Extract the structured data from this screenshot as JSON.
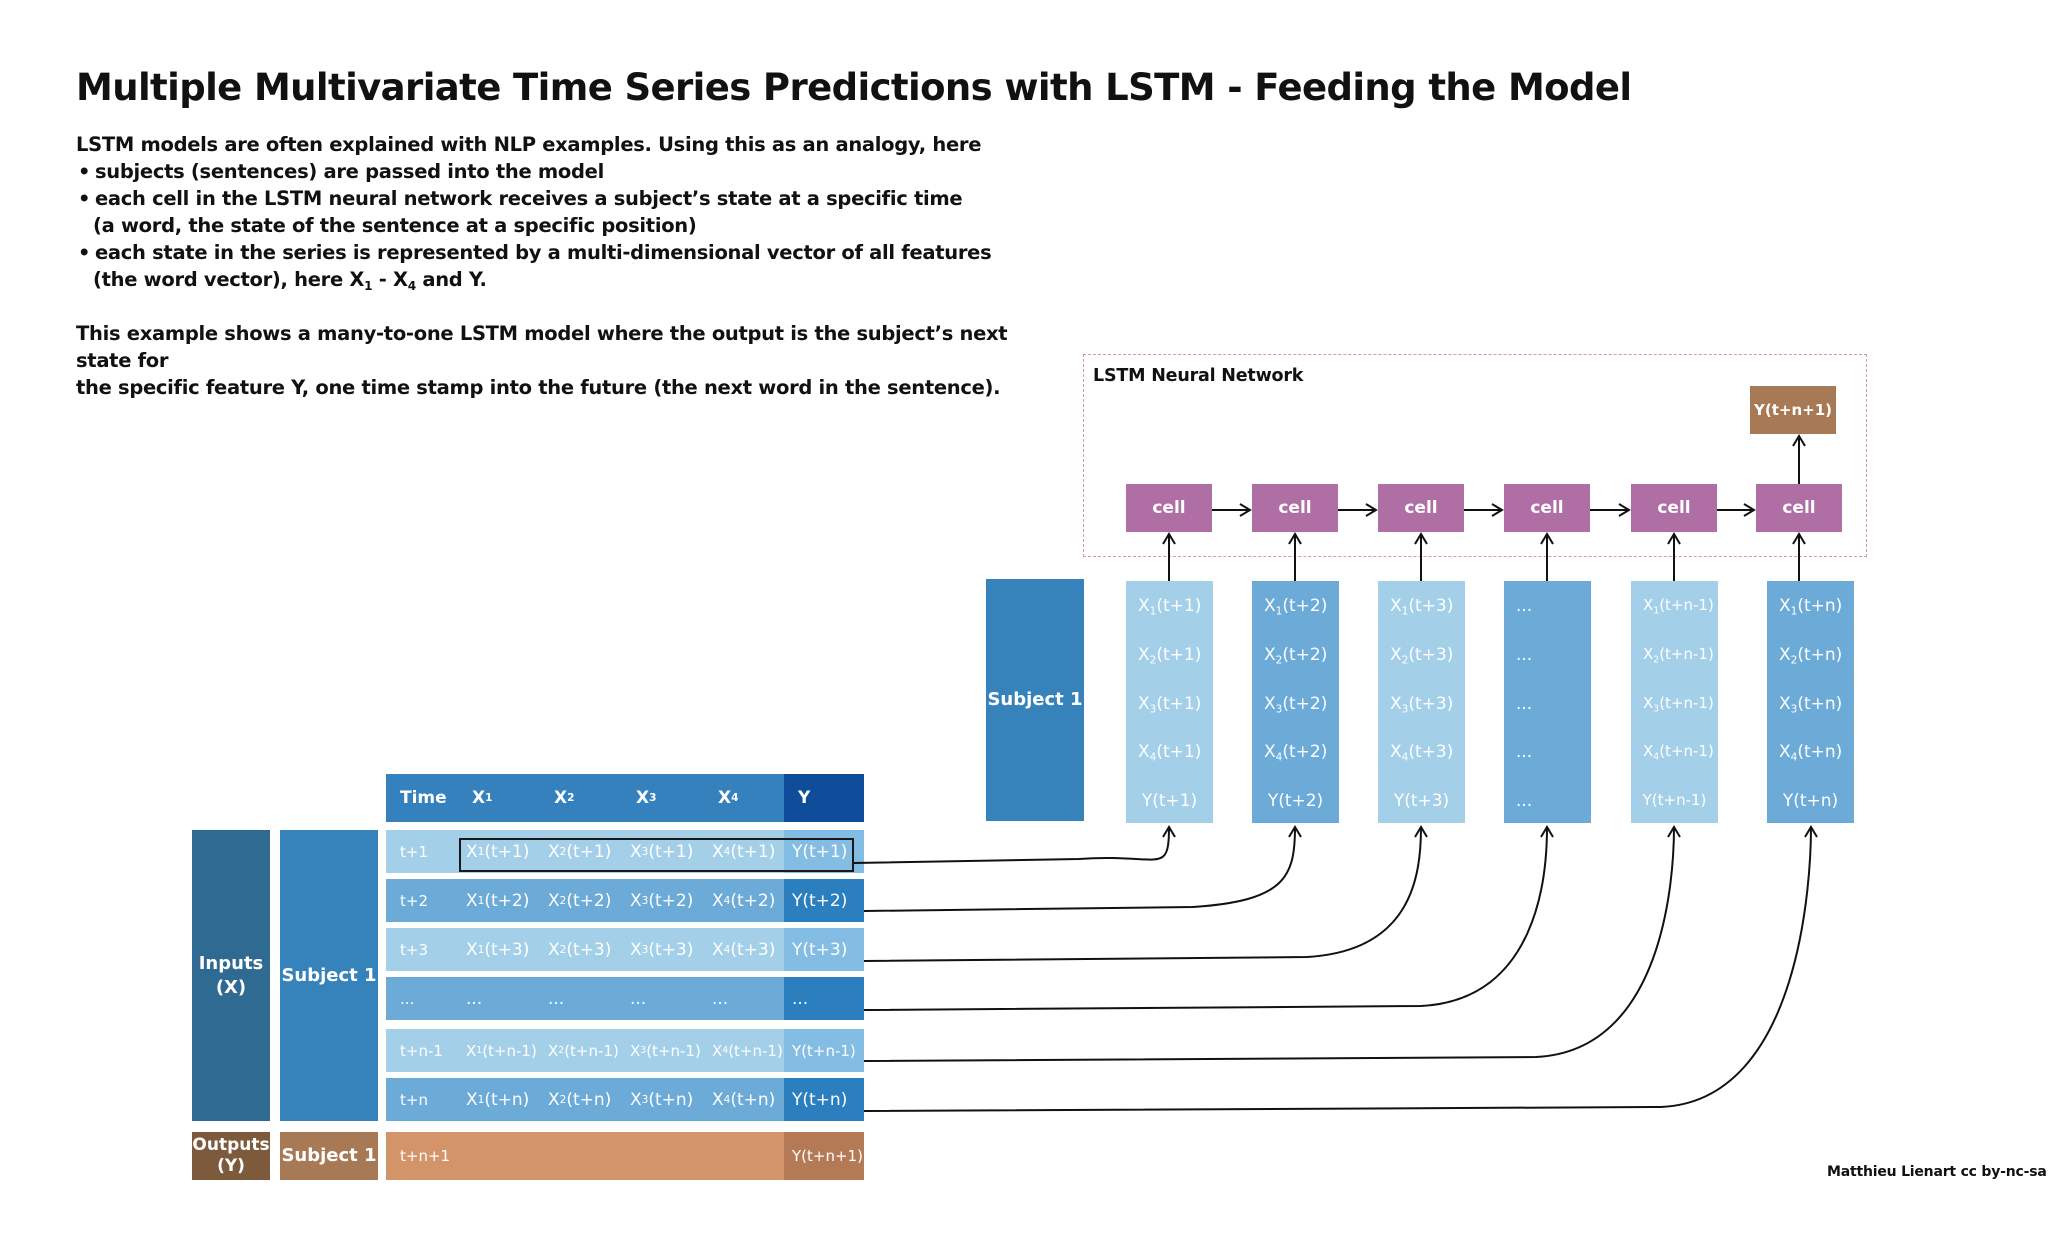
{
  "title": "Multiple Multivariate Time Series Predictions with LSTM - Feeding the Model",
  "intro": {
    "line1": "LSTM models are often explained with NLP examples. Using this as an analogy, here",
    "bullets": [
      {
        "text": "subjects (sentences) are passed into the model",
        "cont": ""
      },
      {
        "text": "each cell in the LSTM neural network receives a subject’s state at a specific time",
        "cont": "(a word, the state of the sentence at a specific position)"
      },
      {
        "text": "each state in the series is represented by a multi-dimensional vector of all features",
        "cont_a": "(the word vector), here X",
        "cont_sub1": "1",
        "cont_b": " - X",
        "cont_sub2": "4",
        "cont_c": " and Y."
      }
    ],
    "para2_l1": "This example shows a many-to-one LSTM model where the output is the subject’s next state for",
    "para2_l2": "the specific feature Y, one time stamp into the future (the next word in the sentence)."
  },
  "table": {
    "headers": {
      "time": "Time",
      "x1": "X",
      "x1_sub": "1",
      "x2": "X",
      "x2_sub": "2",
      "x3": "X",
      "x3_sub": "3",
      "x4": "X",
      "x4_sub": "4",
      "y": "Y"
    },
    "rows": [
      {
        "time": "t+1",
        "idx": "(t+1)",
        "y": "Y(t+1)"
      },
      {
        "time": "t+2",
        "idx": "(t+2)",
        "y": "Y(t+2)"
      },
      {
        "time": "t+3",
        "idx": "(t+3)",
        "y": "Y(t+3)"
      },
      {
        "time": "...",
        "idx": "...",
        "y": "..."
      },
      {
        "time": "t+n-1",
        "idx": "(t+n-1)",
        "y": "Y(t+n-1)"
      },
      {
        "time": "t+n",
        "idx": "(t+n)",
        "y": "Y(t+n)"
      }
    ],
    "output_row": {
      "time": "t+n+1",
      "y": "Y(t+n+1)"
    },
    "inputs_label_l1": "Inputs",
    "inputs_label_l2": "(X)",
    "outputs_label_l1": "Outputs",
    "outputs_label_l2": "(Y)",
    "subject_label": "Subject 1",
    "subject_output_label": "Subject 1"
  },
  "network": {
    "title": "LSTM Neural Network",
    "cell_label": "cell",
    "output_label": "Y(t+n+1)",
    "subject_label": "Subject 1",
    "columns": [
      {
        "idx": "(t+1)",
        "y": "Y(t+1)"
      },
      {
        "idx": "(t+2)",
        "y": "Y(t+2)"
      },
      {
        "idx": "(t+3)",
        "y": "Y(t+3)"
      },
      {
        "idx": "...",
        "y": "..."
      },
      {
        "idx": "(t+n-1)",
        "y": "Y(t+n-1)"
      },
      {
        "idx": "(t+n)",
        "y": "Y(t+n)"
      }
    ]
  },
  "credit": "Matthieu Lienart cc by-nc-sa",
  "colors": {
    "header": "#3481bd",
    "header_y": "#0f4c99",
    "row_light": "#a3d0e8",
    "row_mid": "#6cabd7",
    "row_y_light": "#83bde3",
    "row_y_mid": "#2c7fbf",
    "inputs_label": "#2e6a91",
    "subject": "#3683bc",
    "outputs_label": "#7e5a3d",
    "subject_out": "#a87955",
    "output_row": "#d4946a",
    "output_row_y": "#b47a55",
    "cell": "#b06fa4",
    "ybox": "#a87955"
  }
}
